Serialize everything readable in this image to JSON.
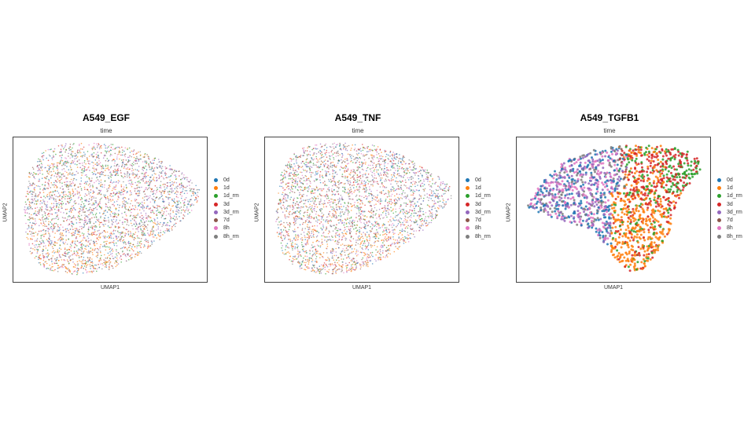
{
  "chart_data": [
    {
      "type": "scatter",
      "title": "A549_EGF",
      "subtitle": "time",
      "xlabel": "UMAP1",
      "ylabel": "UMAP2",
      "grid": false,
      "legend_position": "right",
      "series": [
        {
          "name": "0d",
          "color": "#1f77b4"
        },
        {
          "name": "1d",
          "color": "#ff7f0e"
        },
        {
          "name": "1d_rm",
          "color": "#2ca02c"
        },
        {
          "name": "3d",
          "color": "#d62728"
        },
        {
          "name": "3d_rm",
          "color": "#9467bd"
        },
        {
          "name": "7d",
          "color": "#8c564b"
        },
        {
          "name": "8h",
          "color": "#e377c2"
        },
        {
          "name": "8h_rm",
          "color": "#7f7f7f"
        }
      ]
    },
    {
      "type": "scatter",
      "title": "A549_TNF",
      "subtitle": "time",
      "xlabel": "UMAP1",
      "ylabel": "UMAP2",
      "grid": false,
      "legend_position": "right",
      "series": [
        {
          "name": "0d",
          "color": "#1f77b4"
        },
        {
          "name": "1d",
          "color": "#ff7f0e"
        },
        {
          "name": "1d_rm",
          "color": "#2ca02c"
        },
        {
          "name": "3d",
          "color": "#d62728"
        },
        {
          "name": "3d_rm",
          "color": "#9467bd"
        },
        {
          "name": "7d",
          "color": "#8c564b"
        },
        {
          "name": "8h",
          "color": "#e377c2"
        },
        {
          "name": "8h_rm",
          "color": "#7f7f7f"
        }
      ]
    },
    {
      "type": "scatter",
      "title": "A549_TGFB1",
      "subtitle": "time",
      "xlabel": "UMAP1",
      "ylabel": "UMAP2",
      "grid": false,
      "legend_position": "right",
      "series": [
        {
          "name": "0d",
          "color": "#1f77b4"
        },
        {
          "name": "1d",
          "color": "#ff7f0e"
        },
        {
          "name": "1d_rm",
          "color": "#2ca02c"
        },
        {
          "name": "3d",
          "color": "#d62728"
        },
        {
          "name": "3d_rm",
          "color": "#9467bd"
        },
        {
          "name": "7d",
          "color": "#8c564b"
        },
        {
          "name": "8h",
          "color": "#e377c2"
        },
        {
          "name": "8h_rm",
          "color": "#7f7f7f"
        }
      ]
    }
  ]
}
